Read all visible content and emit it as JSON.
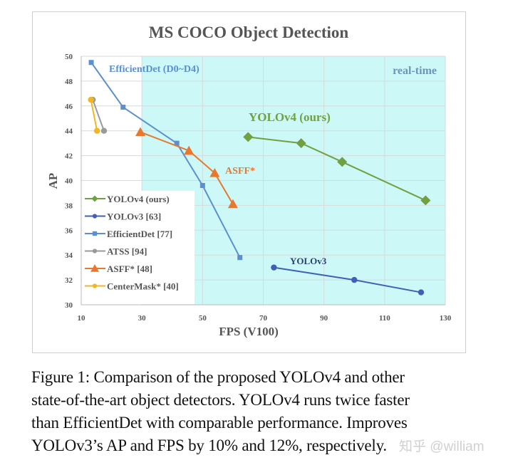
{
  "chart_data": {
    "type": "line",
    "title": "MS COCO Object Detection",
    "xlabel": "FPS (V100)",
    "ylabel": "AP",
    "xlim": [
      10,
      130
    ],
    "ylim": [
      30,
      50
    ],
    "xticks": [
      "10",
      "30",
      "50",
      "70",
      "90",
      "110",
      "130"
    ],
    "yticks": [
      "30",
      "32",
      "34",
      "36",
      "38",
      "40",
      "42",
      "44",
      "46",
      "48",
      "50"
    ],
    "grid": true,
    "legend_position": "bottom-left",
    "shaded_region": {
      "label": "real-time",
      "x_from": 30,
      "color": "#ccf8f8"
    },
    "series": [
      {
        "name": "YOLOv4 (ours)",
        "marker": "diamond",
        "color": "#70a040",
        "annotation": "YOLOv4 (ours)",
        "x": [
          65,
          82.5,
          96,
          123.5
        ],
        "y": [
          43.5,
          43.0,
          41.5,
          38.4
        ]
      },
      {
        "name": "YOLOv3 [63]",
        "marker": "circle",
        "color": "#4060b8",
        "annotation": "YOLOv3",
        "x": [
          73.5,
          100,
          122
        ],
        "y": [
          33.0,
          32.0,
          31.0
        ]
      },
      {
        "name": "EfficientDet [77]",
        "marker": "square",
        "color": "#5b8fd0",
        "annotation": "EfficientDet (D0~D4)",
        "x": [
          13.3,
          23.8,
          41.5,
          50,
          62.3
        ],
        "y": [
          49.5,
          45.9,
          43.0,
          39.6,
          33.8
        ]
      },
      {
        "name": "ATSS [94]",
        "marker": "circle",
        "color": "#9a9a9a",
        "x": [
          13.8,
          17.5
        ],
        "y": [
          46.5,
          44.0
        ]
      },
      {
        "name": "ASFF* [48]",
        "marker": "triangle",
        "color": "#e8782e",
        "annotation": "ASFF*",
        "x": [
          29.5,
          45.5,
          54,
          60
        ],
        "y": [
          43.9,
          42.4,
          40.6,
          38.1
        ]
      },
      {
        "name": "CenterMask* [40]",
        "marker": "circle",
        "color": "#f2b526",
        "x": [
          13.2,
          15.2
        ],
        "y": [
          46.5,
          44.0
        ]
      }
    ]
  },
  "caption": {
    "lines": [
      "Figure 1: Comparison of the proposed YOLOv4 and other",
      "state-of-the-art object detectors. YOLOv4 runs twice faster",
      "than EfficientDet with comparable performance. Improves",
      "YOLOv3’s AP and FPS by 10% and 12%, respectively."
    ]
  },
  "watermark": "知乎 @william"
}
